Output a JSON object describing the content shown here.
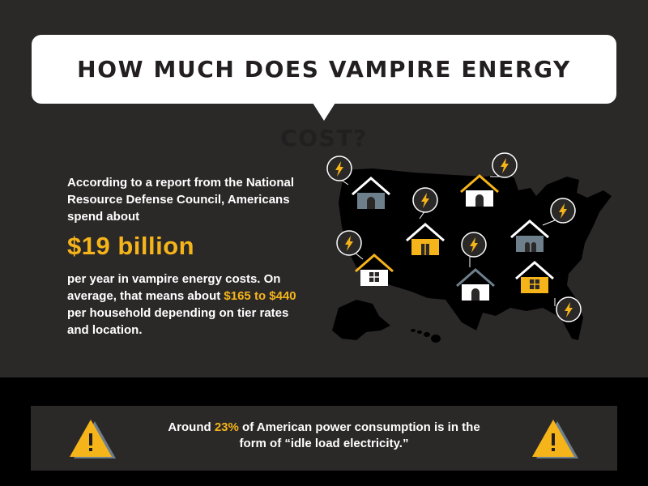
{
  "title": "HOW MUCH DOES VAMPIRE ENERGY COST?",
  "intro": "According to a report from the National Resource Defense Council, Americans spend about",
  "big_number": "$19 billion",
  "body_pre": "per year in vampire energy costs. On average, that means about ",
  "range": "$165 to $440",
  "body_post": " per household depending on tier rates and location.",
  "banner": {
    "pre": "Around ",
    "pct": "23%",
    "post": " of American power consumption is in the form of “idle load electricity.”"
  },
  "colors": {
    "accent": "#f5b41a",
    "background": "#2b2828",
    "banner_bg": "#000000",
    "house_gray": "#6e7f8c"
  },
  "icons": [
    "lightning-bolt-icon",
    "house-icon",
    "warning-icon"
  ]
}
